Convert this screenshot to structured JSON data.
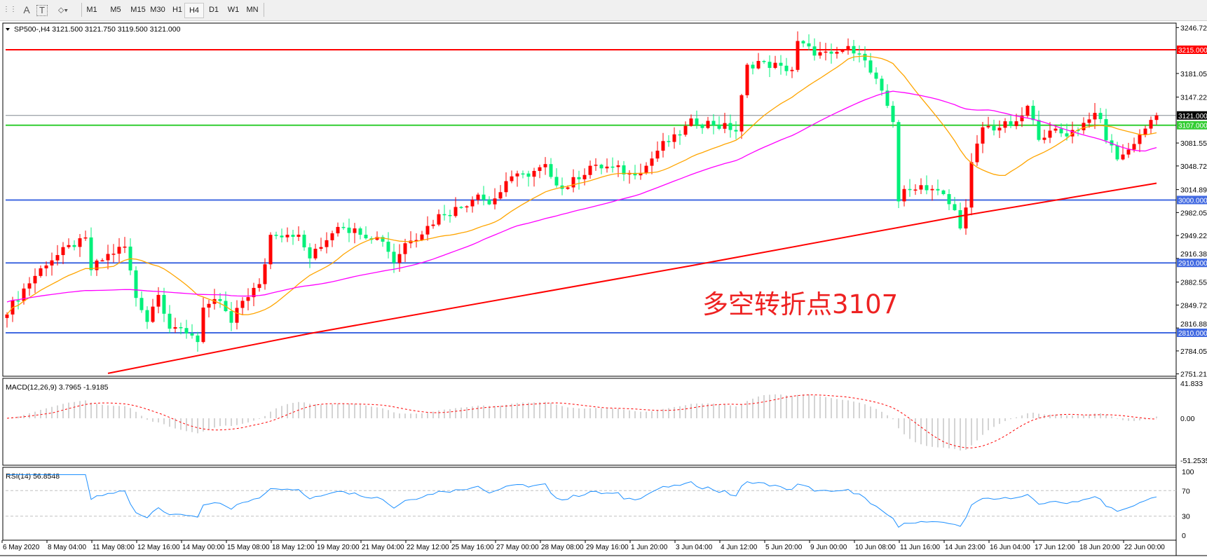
{
  "toolbar": {
    "tools": [
      {
        "name": "grid-icon",
        "glyph": "⋯"
      },
      {
        "name": "text-icon",
        "glyph": "A"
      },
      {
        "name": "text-label-icon",
        "glyph": "T"
      },
      {
        "name": "shapes-icon",
        "glyph": "⬦"
      }
    ],
    "timeframes": [
      "M1",
      "M5",
      "M15",
      "M30",
      "H1",
      "H4",
      "D1",
      "W1",
      "MN"
    ],
    "active_timeframe": "H4"
  },
  "chart": {
    "header": "SP500-,H4  3121.500 3121.750 3119.500 3121.000",
    "symbol": "SP500-",
    "timeframe": "H4",
    "ohlc": {
      "open": 3121.5,
      "high": 3121.75,
      "low": 3119.5,
      "close": 3121.0
    },
    "annotation": "多空转折点3107",
    "price_axis": [
      "3246.725",
      "3181.055",
      "3147.225",
      "3081.555",
      "3048.720",
      "3014.890",
      "2982.055",
      "2949.220",
      "2916.385",
      "2882.555",
      "2849.720",
      "2816.885",
      "2784.050",
      "2751.215"
    ],
    "price_range": [
      2751.215,
      3246.725
    ],
    "levels": [
      {
        "label": "3215.000",
        "price": 3215,
        "color": "#ff0000"
      },
      {
        "label": "3121.000",
        "price": 3121,
        "color": "#808890",
        "tag": "#000000"
      },
      {
        "label": "3107.000",
        "price": 3107,
        "color": "#32cd32"
      },
      {
        "label": "3000.000",
        "price": 3000,
        "color": "#4169e1"
      },
      {
        "label": "2910.000",
        "price": 2910,
        "color": "#4169e1"
      },
      {
        "label": "2810.000",
        "price": 2810,
        "color": "#4169e1"
      }
    ],
    "colors": {
      "bull": "#ff0000",
      "bear": "#00f07a",
      "ma_fast": "#ffa500",
      "ma_mid": "#ff00ff",
      "ma_slow": "#ff0000"
    },
    "close_waypoints": [
      [
        0,
        2839
      ],
      [
        3,
        2873
      ],
      [
        7,
        2911
      ],
      [
        11,
        2931
      ],
      [
        14,
        2942
      ],
      [
        15,
        2900
      ],
      [
        18,
        2922
      ],
      [
        21,
        2933
      ],
      [
        23,
        2861
      ],
      [
        25,
        2828
      ],
      [
        27,
        2867
      ],
      [
        29,
        2817
      ],
      [
        32,
        2812
      ],
      [
        34,
        2801
      ],
      [
        35,
        2845
      ],
      [
        38,
        2856
      ],
      [
        40,
        2823
      ],
      [
        42,
        2856
      ],
      [
        43,
        2865
      ],
      [
        45,
        2878
      ],
      [
        46,
        2911
      ],
      [
        47,
        2950
      ],
      [
        50,
        2953
      ],
      [
        52,
        2946
      ],
      [
        54,
        2917
      ],
      [
        56,
        2933
      ],
      [
        59,
        2966
      ],
      [
        62,
        2955
      ],
      [
        65,
        2949
      ],
      [
        67,
        2944
      ],
      [
        69,
        2911
      ],
      [
        71,
        2938
      ],
      [
        74,
        2955
      ],
      [
        77,
        2977
      ],
      [
        81,
        2990
      ],
      [
        84,
        3010
      ],
      [
        86,
        2994
      ],
      [
        89,
        3021
      ],
      [
        91,
        3043
      ],
      [
        93,
        3032
      ],
      [
        96,
        3049
      ],
      [
        99,
        3016
      ],
      [
        102,
        3032
      ],
      [
        104,
        3049
      ],
      [
        108,
        3046
      ],
      [
        111,
        3038
      ],
      [
        114,
        3049
      ],
      [
        117,
        3082
      ],
      [
        119,
        3087
      ],
      [
        122,
        3110
      ],
      [
        125,
        3110
      ],
      [
        128,
        3104
      ],
      [
        130,
        3099
      ],
      [
        132,
        3192
      ],
      [
        134,
        3198
      ],
      [
        137,
        3192
      ],
      [
        140,
        3187
      ],
      [
        141,
        3226
      ],
      [
        144,
        3209
      ],
      [
        147,
        3207
      ],
      [
        150,
        3218
      ],
      [
        152,
        3215
      ],
      [
        154,
        3182
      ],
      [
        156,
        3154
      ],
      [
        158,
        3115
      ],
      [
        159,
        2999
      ],
      [
        160,
        3010
      ],
      [
        163,
        3021
      ],
      [
        165,
        3016
      ],
      [
        167,
        3005
      ],
      [
        169,
        2983
      ],
      [
        170,
        2966
      ],
      [
        171,
        2988
      ],
      [
        172,
        3049
      ],
      [
        174,
        3104
      ],
      [
        177,
        3104
      ],
      [
        180,
        3110
      ],
      [
        182,
        3132
      ],
      [
        184,
        3093
      ],
      [
        187,
        3099
      ],
      [
        189,
        3093
      ],
      [
        192,
        3110
      ],
      [
        193,
        3121
      ],
      [
        195,
        3115
      ],
      [
        196,
        3088
      ],
      [
        198,
        3060
      ],
      [
        200,
        3071
      ],
      [
        202,
        3093
      ],
      [
        203,
        3104
      ],
      [
        205,
        3121
      ]
    ],
    "ma_slow_waypoints": [
      [
        18,
        2752
      ],
      [
        54,
        2809
      ],
      [
        122,
        2906
      ],
      [
        170,
        2977
      ],
      [
        205,
        3024
      ]
    ],
    "time_axis": [
      "6 May 2020",
      "8 May 04:00",
      "11 May 08:00",
      "12 May 16:00",
      "14 May 00:00",
      "15 May 08:00",
      "18 May 12:00",
      "19 May 20:00",
      "21 May 04:00",
      "22 May 12:00",
      "25 May 16:00",
      "27 May 00:00",
      "28 May 08:00",
      "29 May 16:00",
      "1 Jun 20:00",
      "3 Jun 04:00",
      "4 Jun 12:00",
      "5 Jun 20:00",
      "9 Jun 00:00",
      "10 Jun 08:00",
      "11 Jun 16:00",
      "14 Jun 23:00",
      "16 Jun 04:00",
      "17 Jun 12:00",
      "18 Jun 20:00",
      "22 Jun 00:00"
    ]
  },
  "macd": {
    "header": "MACD(12,26,9) 3.7965 -1.9185",
    "params": [
      12,
      26,
      9
    ],
    "axis": [
      "41.833",
      "0.00",
      "-51.2535"
    ],
    "range": [
      -51.2535,
      41.833
    ]
  },
  "rsi": {
    "header": "RSI(14) 56.8548",
    "period": 14,
    "axis": [
      "100",
      "70",
      "30",
      "0"
    ],
    "color": "#1e90ff"
  }
}
